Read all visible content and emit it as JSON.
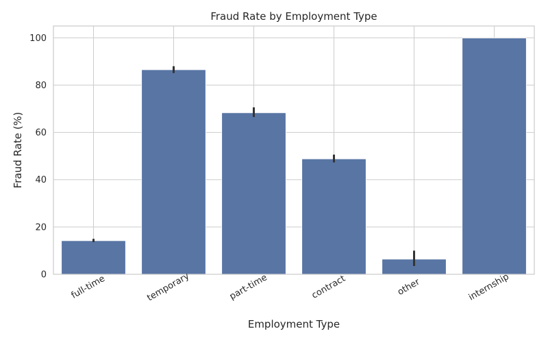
{
  "chart_data": {
    "type": "bar",
    "title": "Fraud Rate by Employment Type",
    "xlabel": "Employment Type",
    "ylabel": "Fraud Rate (%)",
    "categories": [
      "full-time",
      "temporary",
      "part-time",
      "contract",
      "other",
      "internship"
    ],
    "values": [
      14.2,
      86.5,
      68.3,
      48.8,
      6.4,
      99.9
    ],
    "error_low": [
      13.6,
      85.1,
      66.5,
      47.3,
      3.5,
      99.9
    ],
    "error_high": [
      15.0,
      88.0,
      70.6,
      50.6,
      10.0,
      99.9
    ],
    "ylim": [
      0,
      105
    ],
    "yticks": [
      0,
      20,
      40,
      60,
      80,
      100
    ],
    "grid": true,
    "colors": {
      "bar": "#5875a4",
      "error_bar": "#333333",
      "grid": "#cccccc",
      "axes_edge": "#cccccc",
      "text": "#262626"
    }
  }
}
